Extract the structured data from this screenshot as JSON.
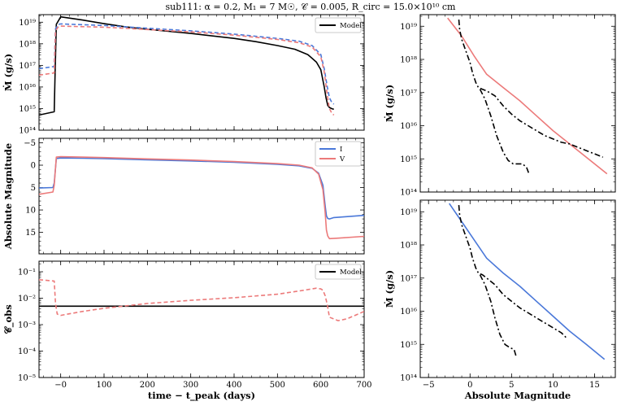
{
  "title": "sub111: α = 0.2, M₁ = 7 M☉, 𝒞 = 0.005, R_circ = 15.0×10¹⁰ cm",
  "colors": {
    "model": "#000000",
    "I": "#4a78d9",
    "V": "#ec7a7a"
  },
  "chart_data": [
    {
      "id": "mdot_time",
      "type": "line",
      "ylabel": "Ṁ (g/s)",
      "xlim": [
        -50,
        700
      ],
      "ylim_log10": [
        14,
        19.35
      ],
      "yscale": "log",
      "xticks": [
        "0",
        "100",
        "200",
        "300",
        "400",
        "500",
        "600",
        "700"
      ],
      "yticks": [
        "10¹⁴",
        "10¹⁵",
        "10¹⁶",
        "10¹⁷",
        "10¹⁸",
        "10¹⁹"
      ],
      "legend": [
        {
          "label": "Model",
          "color": "#000000",
          "dash": false
        }
      ],
      "series": [
        {
          "name": "Model",
          "color": "#000000",
          "dash": false,
          "x": [
            -50,
            -15,
            -13,
            -10,
            0,
            50,
            100,
            150,
            200,
            300,
            400,
            450,
            500,
            540,
            570,
            590,
            600,
            608,
            612,
            616,
            620,
            625,
            630
          ],
          "y": [
            14.7,
            14.85,
            16.5,
            18.9,
            19.25,
            19.1,
            18.93,
            18.78,
            18.67,
            18.48,
            18.25,
            18.1,
            17.92,
            17.75,
            17.5,
            17.15,
            16.8,
            16.0,
            15.5,
            15.15,
            15.05,
            15.0,
            14.97
          ]
        },
        {
          "name": "I",
          "color": "#4a78d9",
          "dash": true,
          "x": [
            -50,
            -15,
            -12,
            -5,
            0,
            100,
            200,
            300,
            400,
            500,
            550,
            580,
            600,
            608,
            615,
            620,
            625,
            630
          ],
          "y": [
            16.85,
            16.95,
            18.7,
            18.9,
            18.92,
            18.85,
            18.72,
            18.6,
            18.45,
            18.25,
            18.12,
            17.92,
            17.5,
            16.85,
            16.0,
            15.5,
            15.3,
            15.2
          ]
        },
        {
          "name": "V",
          "color": "#ec7a7a",
          "dash": true,
          "x": [
            -50,
            -15,
            -12,
            -5,
            0,
            100,
            200,
            300,
            400,
            500,
            550,
            580,
            600,
            608,
            615,
            620,
            625,
            630
          ],
          "y": [
            16.55,
            16.65,
            18.6,
            18.8,
            18.82,
            18.77,
            18.66,
            18.55,
            18.4,
            18.2,
            18.05,
            17.85,
            17.4,
            16.7,
            15.6,
            15.0,
            14.8,
            14.7
          ]
        }
      ]
    },
    {
      "id": "mag_time",
      "type": "line",
      "ylabel": "Absolute Magnitude",
      "xlim": [
        -50,
        700
      ],
      "ylim": [
        19.8,
        -6.0
      ],
      "yscale": "linear-inverted",
      "xticks": [
        "0",
        "100",
        "200",
        "300",
        "400",
        "500",
        "600",
        "700"
      ],
      "yticks": [
        "−5",
        "0",
        "5",
        "10",
        "15"
      ],
      "legend": [
        {
          "label": "I",
          "color": "#4a78d9",
          "dash": false
        },
        {
          "label": "V",
          "color": "#ec7a7a",
          "dash": false
        }
      ],
      "series": [
        {
          "name": "I",
          "color": "#4a78d9",
          "dash": false,
          "x": [
            -50,
            -18,
            -15,
            -10,
            0,
            50,
            100,
            200,
            300,
            400,
            500,
            550,
            580,
            595,
            605,
            610,
            613,
            616,
            620,
            630,
            700
          ],
          "y": [
            5.1,
            5.0,
            4.0,
            -1.5,
            -1.6,
            -1.55,
            -1.45,
            -1.2,
            -0.95,
            -0.65,
            -0.2,
            0.15,
            0.7,
            1.8,
            4.5,
            9.0,
            11.3,
            11.9,
            12.0,
            11.7,
            11.2
          ]
        },
        {
          "name": "V",
          "color": "#ec7a7a",
          "dash": false,
          "x": [
            -50,
            -18,
            -15,
            -10,
            0,
            50,
            100,
            200,
            300,
            400,
            500,
            550,
            580,
            595,
            605,
            610,
            613,
            616,
            620,
            640,
            700
          ],
          "y": [
            6.5,
            6.0,
            4.5,
            -1.8,
            -1.9,
            -1.8,
            -1.7,
            -1.4,
            -1.15,
            -0.8,
            -0.35,
            0.0,
            0.6,
            2.0,
            5.5,
            10.5,
            14.5,
            15.8,
            16.4,
            16.3,
            15.9
          ]
        }
      ]
    },
    {
      "id": "cobs_time",
      "type": "line",
      "ylabel": "𝒞_obs",
      "xlabel": "time − t_peak (days)",
      "xlim": [
        -50,
        700
      ],
      "ylim_log10": [
        -5,
        -0.6
      ],
      "yscale": "log",
      "xticks": [
        "−0",
        "100",
        "200",
        "300",
        "400",
        "500",
        "600",
        "700"
      ],
      "yticks": [
        "10⁻⁵",
        "10⁻⁴",
        "10⁻³",
        "10⁻²",
        "10⁻¹"
      ],
      "legend": [
        {
          "label": "Model",
          "color": "#000000",
          "dash": false
        }
      ],
      "hline_log10": -2.301,
      "series": [
        {
          "name": "V",
          "color": "#ec7a7a",
          "dash": true,
          "x": [
            -50,
            -15,
            -12,
            -8,
            0,
            50,
            100,
            200,
            300,
            400,
            500,
            560,
            590,
            600,
            605,
            610,
            615,
            620,
            640,
            660,
            700
          ],
          "y": [
            -1.3,
            -1.35,
            -2.2,
            -2.6,
            -2.65,
            -2.5,
            -2.38,
            -2.2,
            -2.08,
            -1.98,
            -1.85,
            -1.7,
            -1.62,
            -1.65,
            -1.7,
            -1.9,
            -2.25,
            -2.72,
            -2.85,
            -2.78,
            -2.5
          ]
        }
      ]
    },
    {
      "id": "mdot_vs_mag_V",
      "type": "line",
      "ylabel": "Ṁ (g/s)",
      "xlim": [
        -6,
        17.5
      ],
      "ylim_log10": [
        14,
        19.35
      ],
      "yscale": "log",
      "xticks": [
        "",
        "",
        "",
        "",
        "",
        "",
        "",
        ""
      ],
      "yticks": [
        "10¹⁴",
        "10¹⁵",
        "10¹⁶",
        "10¹⁷",
        "10¹⁸",
        "10¹⁹"
      ],
      "series": [
        {
          "name": "V",
          "color": "#ec7a7a",
          "dash": false,
          "x": [
            -2.7,
            -1.0,
            0.5,
            2.0,
            4.0,
            6.0,
            8.0,
            10.0,
            12.0,
            14.0,
            16.5
          ],
          "y": [
            19.25,
            18.7,
            18.1,
            17.55,
            17.15,
            16.75,
            16.3,
            15.85,
            15.45,
            15.05,
            14.55
          ]
        },
        {
          "name": "Model_V",
          "color": "#000000",
          "dash": "dashdot",
          "x": [
            -1.35,
            -1.25,
            -1.0,
            -0.5,
            0.0,
            0.3,
            0.7,
            1.0,
            1.5,
            2.0,
            3.0,
            4.0,
            5.0,
            6.0,
            7.0,
            8.0,
            9.0,
            10.0,
            11.0,
            12.0,
            13.0,
            14.0,
            15.0,
            16.0
          ],
          "y": [
            19.2,
            18.9,
            18.6,
            18.25,
            17.9,
            17.6,
            17.3,
            17.15,
            17.1,
            17.05,
            16.9,
            16.6,
            16.35,
            16.15,
            16.0,
            15.85,
            15.7,
            15.6,
            15.5,
            15.45,
            15.35,
            15.25,
            15.15,
            15.05
          ]
        },
        {
          "name": "Model_V_late",
          "color": "#000000",
          "dash": "dashdot",
          "x": [
            1.2,
            1.8,
            2.5,
            3.2,
            4.0,
            4.6,
            5.2,
            5.8,
            6.3,
            6.8,
            7.1
          ],
          "y": [
            17.1,
            16.8,
            16.3,
            15.7,
            15.2,
            14.95,
            14.85,
            14.85,
            14.85,
            14.75,
            14.55
          ]
        }
      ]
    },
    {
      "id": "mdot_vs_mag_I",
      "type": "line",
      "ylabel": "Ṁ (g/s)",
      "xlabel": "Absolute Magnitude",
      "xlim": [
        -6,
        17.5
      ],
      "ylim_log10": [
        14,
        19.35
      ],
      "yscale": "log",
      "xticks": [
        "−5",
        "0",
        "5",
        "10",
        "15"
      ],
      "yticks": [
        "10¹⁴",
        "10¹⁵",
        "10¹⁶",
        "10¹⁷",
        "10¹⁸",
        "10¹⁹"
      ],
      "series": [
        {
          "name": "I",
          "color": "#4a78d9",
          "dash": false,
          "x": [
            -2.5,
            -1.0,
            0.5,
            2.0,
            4.0,
            6.0,
            8.0,
            10.0,
            12.0,
            14.0,
            16.2
          ],
          "y": [
            19.25,
            18.7,
            18.15,
            17.6,
            17.15,
            16.75,
            16.3,
            15.85,
            15.4,
            15.0,
            14.55
          ]
        },
        {
          "name": "Model_I",
          "color": "#000000",
          "dash": "dashdot",
          "x": [
            -1.35,
            -1.25,
            -1.0,
            -0.5,
            0.0,
            0.3,
            0.7,
            1.0,
            1.5,
            2.0,
            3.0,
            4.0,
            5.0,
            6.0,
            7.0,
            8.0,
            9.0,
            10.0,
            11.0,
            11.6
          ],
          "y": [
            19.2,
            18.9,
            18.6,
            18.25,
            17.9,
            17.6,
            17.3,
            17.15,
            17.1,
            17.0,
            16.8,
            16.5,
            16.3,
            16.1,
            15.95,
            15.8,
            15.65,
            15.5,
            15.35,
            15.2
          ]
        },
        {
          "name": "Model_I_late",
          "color": "#000000",
          "dash": "dashdot",
          "x": [
            1.2,
            1.8,
            2.5,
            3.0,
            3.6,
            4.2,
            4.8,
            5.3,
            5.6
          ],
          "y": [
            17.1,
            16.8,
            16.3,
            15.8,
            15.3,
            15.0,
            14.9,
            14.85,
            14.6
          ]
        }
      ]
    }
  ]
}
